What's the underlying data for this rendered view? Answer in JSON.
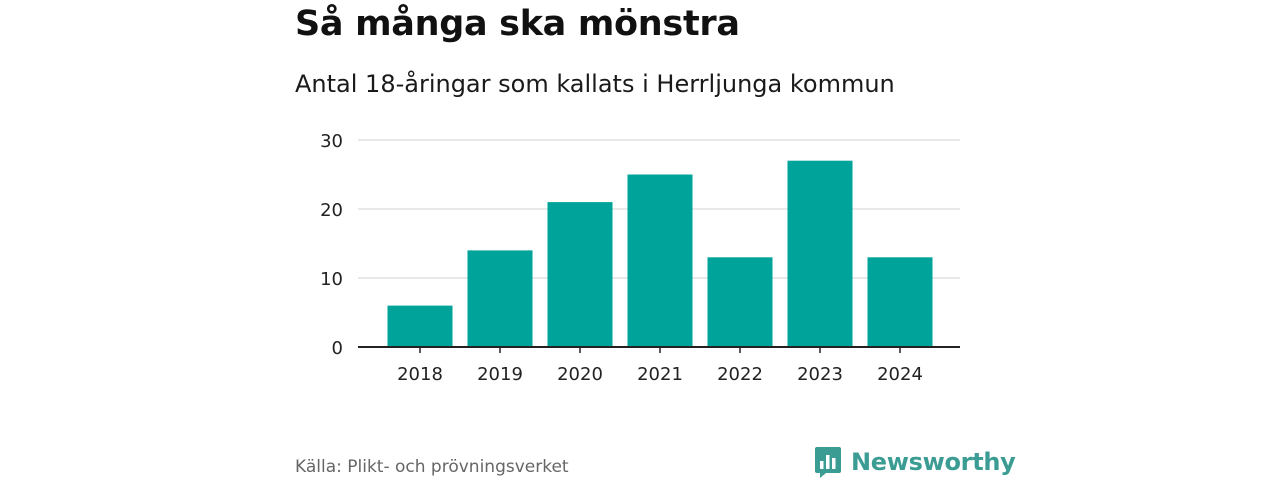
{
  "header": {
    "title": "Så många ska mönstra",
    "subtitle": "Antal 18-åringar som kallats i Herrljunga kommun"
  },
  "footer": {
    "source": "Källa: Plikt- och prövningsverket",
    "brand": "Newsworthy",
    "brand_icon": "bar-chart-speech-bubble-icon"
  },
  "colors": {
    "bar": "#00a399",
    "grid": "#d9d9d9",
    "axis": "#222222",
    "brand": "#3b9c93"
  },
  "chart_data": {
    "type": "bar",
    "categories": [
      "2018",
      "2019",
      "2020",
      "2021",
      "2022",
      "2023",
      "2024"
    ],
    "values": [
      6,
      14,
      21,
      25,
      13,
      27,
      13
    ],
    "yticks": [
      0,
      10,
      20,
      30
    ],
    "ylim": [
      0,
      30
    ],
    "grid": true
  }
}
